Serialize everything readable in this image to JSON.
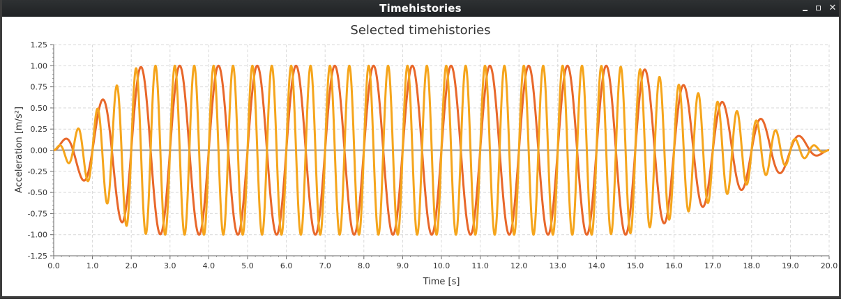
{
  "window": {
    "title": "Timehistories",
    "minimize_icon": "minimize-icon",
    "maximize_icon": "maximize-icon",
    "close_icon": "close-icon"
  },
  "chart_data": {
    "type": "line",
    "title": "Selected timehistories",
    "xlabel": "Time [s]",
    "ylabel": "Acceleration [m/s²]",
    "xlim": [
      0,
      20
    ],
    "ylim": [
      -1.25,
      1.25
    ],
    "x_ticks": [
      "0.0",
      "1.0",
      "2.0",
      "3.0",
      "4.0",
      "5.0",
      "6.0",
      "7.0",
      "8.0",
      "9.0",
      "10.0",
      "11.0",
      "12.0",
      "13.0",
      "14.0",
      "15.0",
      "16.0",
      "17.0",
      "18.0",
      "19.0",
      "20.0"
    ],
    "y_ticks": [
      "1.25",
      "1.00",
      "0.75",
      "0.50",
      "0.25",
      "0.00",
      "-0.25",
      "-0.50",
      "-0.75",
      "-1.00",
      "-1.25"
    ],
    "grid": true,
    "legend": "none",
    "series": [
      {
        "color": "#e8672a",
        "frequency_hz": 1.0,
        "x": [
          0,
          1,
          1.5,
          2,
          3,
          4,
          5,
          6,
          7,
          8,
          9,
          10,
          11,
          12,
          13,
          14,
          15,
          16,
          17,
          18,
          19,
          20
        ],
        "envelope": [
          0,
          0.47,
          0.72,
          0.98,
          1,
          1,
          1,
          1,
          1,
          1,
          1,
          1,
          1,
          1,
          1,
          1,
          1,
          0.82,
          0.62,
          0.42,
          0.22,
          0
        ]
      },
      {
        "color": "#f5a51c",
        "frequency_hz": 2.0,
        "x": [
          0,
          0.5,
          1,
          1.5,
          2,
          2.5,
          3,
          4,
          5,
          6,
          7,
          8,
          9,
          10,
          11,
          12,
          13,
          14,
          15,
          16,
          17,
          18,
          19,
          20
        ],
        "envelope": [
          0,
          0.2,
          0.42,
          0.7,
          0.96,
          1,
          1,
          1,
          1,
          1,
          1,
          1,
          1,
          1,
          1,
          1,
          1,
          1,
          0.98,
          0.8,
          0.6,
          0.38,
          0.15,
          0
        ]
      }
    ]
  }
}
